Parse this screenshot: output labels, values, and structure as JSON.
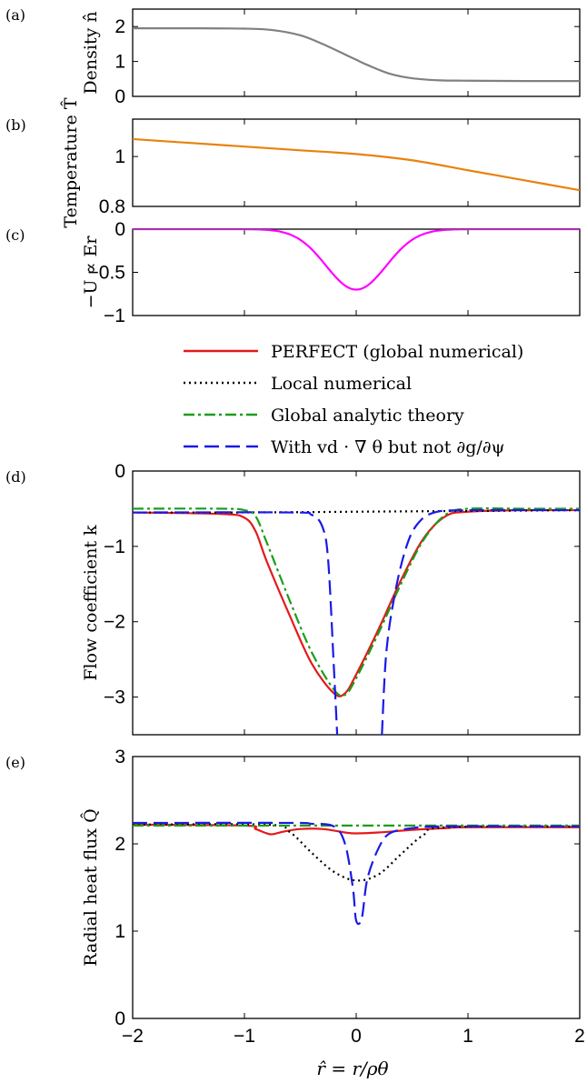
{
  "figure": {
    "xlabel": "r̂ = r/ρθ"
  },
  "legend": {
    "entries": [
      {
        "label": "PERFECT (global numerical)",
        "color": "#e31a1c",
        "style": "solid"
      },
      {
        "label": "Local numerical",
        "color": "#000000",
        "style": "dotted"
      },
      {
        "label": "Global analytic theory",
        "color": "#1a9e1a",
        "style": "dashdot"
      },
      {
        "label": "With vd · ∇ θ but not ∂g/∂ψ",
        "color": "#1a1ae6",
        "style": "dashed"
      }
    ]
  },
  "chart_data": [
    {
      "id": "a",
      "panel_label": "(a)",
      "type": "line",
      "ylabel": "Density n̂",
      "xlim": [
        -2,
        2
      ],
      "ylim": [
        0,
        2.5
      ],
      "yticks": [
        0,
        1,
        2
      ],
      "xticks": [
        -2,
        -1,
        0,
        1,
        2
      ],
      "series": [
        {
          "color": "#808080",
          "x": [
            -2,
            -1.5,
            -1,
            -0.75,
            -0.5,
            -0.3,
            -0.1,
            0,
            0.1,
            0.3,
            0.5,
            0.75,
            1,
            1.5,
            2
          ],
          "y": [
            1.95,
            1.95,
            1.94,
            1.9,
            1.75,
            1.5,
            1.2,
            1.05,
            0.9,
            0.65,
            0.52,
            0.46,
            0.45,
            0.44,
            0.44
          ]
        }
      ]
    },
    {
      "id": "b",
      "panel_label": "(b)",
      "type": "line",
      "ylabel": "Temperature T̂",
      "xlim": [
        -2,
        2
      ],
      "ylim": [
        0.8,
        1.15
      ],
      "yticks": [
        0.8,
        1
      ],
      "xticks": [
        -2,
        -1,
        0,
        1,
        2
      ],
      "series": [
        {
          "color": "#e8820c",
          "x": [
            -2,
            -1.5,
            -1,
            -0.5,
            0,
            0.5,
            1,
            1.5,
            2
          ],
          "y": [
            1.07,
            1.055,
            1.04,
            1.025,
            1.01,
            0.985,
            0.945,
            0.905,
            0.865
          ]
        }
      ]
    },
    {
      "id": "c",
      "panel_label": "(c)",
      "type": "line",
      "ylabel": "−U ∝ Er",
      "xlim": [
        -2,
        2
      ],
      "ylim": [
        -1,
        0
      ],
      "yticks": [
        -1,
        -0.5,
        0
      ],
      "xticks": [
        -2,
        -1,
        0,
        1,
        2
      ],
      "series": [
        {
          "color": "#ff00ff",
          "gaussian": {
            "amp": -0.7,
            "center": 0,
            "width": 0.38
          }
        }
      ]
    },
    {
      "id": "d",
      "panel_label": "(d)",
      "type": "line",
      "ylabel": "Flow coefficient k",
      "xlim": [
        -2,
        2
      ],
      "ylim": [
        -3.5,
        0
      ],
      "yticks": [
        -3,
        -2,
        -1,
        0
      ],
      "xticks": [
        -2,
        -1,
        0,
        1,
        2
      ],
      "series": [
        {
          "name": "PERFECT (global numerical)",
          "color": "#e31a1c",
          "style": "solid",
          "x": [
            -2,
            -1.2,
            -1.0,
            -0.9,
            -0.8,
            -0.6,
            -0.4,
            -0.2,
            -0.1,
            0.0,
            0.2,
            0.4,
            0.6,
            0.8,
            1.0,
            1.5,
            2
          ],
          "y": [
            -0.55,
            -0.57,
            -0.62,
            -0.8,
            -1.2,
            -1.9,
            -2.55,
            -2.95,
            -2.95,
            -2.7,
            -2.1,
            -1.45,
            -0.9,
            -0.6,
            -0.54,
            -0.52,
            -0.52
          ]
        },
        {
          "name": "Local numerical",
          "color": "#000000",
          "style": "dotted",
          "x": [
            -2,
            -1,
            0,
            1,
            2
          ],
          "y": [
            -0.55,
            -0.55,
            -0.54,
            -0.53,
            -0.52
          ]
        },
        {
          "name": "Global analytic theory",
          "color": "#1a9e1a",
          "style": "dashdot",
          "x": [
            -2,
            -1.2,
            -1.0,
            -0.9,
            -0.8,
            -0.6,
            -0.4,
            -0.2,
            -0.1,
            0.0,
            0.2,
            0.4,
            0.6,
            0.8,
            1.0,
            1.5,
            2
          ],
          "y": [
            -0.5,
            -0.5,
            -0.52,
            -0.6,
            -0.95,
            -1.7,
            -2.4,
            -2.9,
            -2.97,
            -2.75,
            -2.15,
            -1.5,
            -0.92,
            -0.58,
            -0.5,
            -0.5,
            -0.5
          ]
        },
        {
          "name": "With vd · ∇ θ but not ∂g/∂ψ",
          "color": "#1a1ae6",
          "style": "dashed",
          "x": [
            -2,
            -0.6,
            -0.4,
            -0.3,
            -0.25,
            -0.2,
            -0.17,
            null,
            0.23,
            0.27,
            0.35,
            0.45,
            0.55,
            0.7,
            1.0,
            2
          ],
          "y": [
            -0.55,
            -0.55,
            -0.58,
            -0.75,
            -1.2,
            -2.6,
            -3.5,
            null,
            -3.5,
            -2.4,
            -1.6,
            -1.0,
            -0.7,
            -0.55,
            -0.52,
            -0.52
          ]
        }
      ]
    },
    {
      "id": "e",
      "panel_label": "(e)",
      "type": "line",
      "ylabel": "Radial heat flux Q̂",
      "xlim": [
        -2,
        2
      ],
      "ylim": [
        0,
        3
      ],
      "yticks": [
        0,
        1,
        2,
        3
      ],
      "xticks": [
        -2,
        -1,
        0,
        1,
        2
      ],
      "xticklabels": [
        "−2",
        "−1",
        "0",
        "1",
        "2"
      ],
      "series": [
        {
          "name": "PERFECT (global numerical)",
          "color": "#e31a1c",
          "style": "solid",
          "x": [
            -2,
            -1.0,
            -0.9,
            -0.8,
            -0.75,
            -0.65,
            -0.5,
            -0.3,
            -0.1,
            0,
            0.2,
            0.5,
            0.8,
            1.0,
            2
          ],
          "y": [
            2.22,
            2.21,
            2.17,
            2.12,
            2.11,
            2.14,
            2.17,
            2.17,
            2.13,
            2.12,
            2.13,
            2.16,
            2.18,
            2.19,
            2.19
          ]
        },
        {
          "name": "Local numerical",
          "color": "#000000",
          "style": "dotted",
          "x": [
            -2,
            -0.8,
            -0.6,
            -0.4,
            -0.2,
            0,
            0.2,
            0.4,
            0.6,
            0.8,
            2
          ],
          "y": [
            2.22,
            2.22,
            2.14,
            1.9,
            1.68,
            1.58,
            1.65,
            1.88,
            2.1,
            2.19,
            2.2
          ]
        },
        {
          "name": "Global analytic theory",
          "color": "#1a9e1a",
          "style": "dashdot",
          "x": [
            -2,
            2
          ],
          "y": [
            2.21,
            2.21
          ]
        },
        {
          "name": "With vd · ∇ θ but not ∂g/∂ψ",
          "color": "#1a1ae6",
          "style": "dashed",
          "x": [
            -2,
            -0.6,
            -0.4,
            -0.2,
            -0.1,
            -0.03,
            0.0,
            0.05,
            0.1,
            0.2,
            0.3,
            0.5,
            0.8,
            2
          ],
          "y": [
            2.24,
            2.24,
            2.23,
            2.2,
            2.0,
            1.5,
            1.12,
            1.15,
            1.6,
            1.95,
            2.12,
            2.18,
            2.2,
            2.2
          ]
        }
      ]
    }
  ]
}
